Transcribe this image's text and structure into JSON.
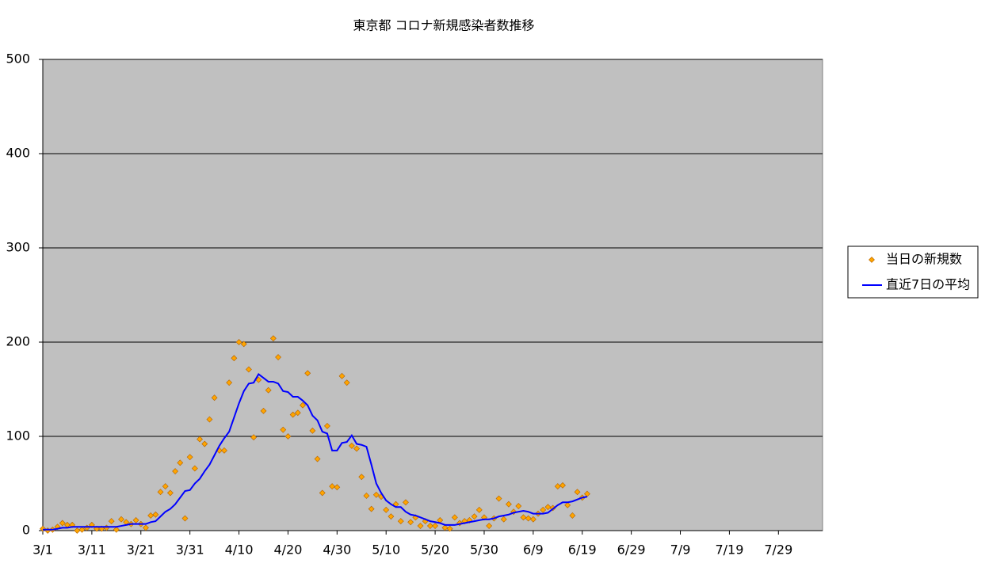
{
  "chart_data": {
    "type": "line",
    "title": "東京都 コロナ新規感染者数推移",
    "categories": [
      "3/1",
      null,
      null,
      null,
      null,
      null,
      null,
      null,
      null,
      null,
      "3/11",
      null,
      null,
      null,
      null,
      null,
      null,
      null,
      null,
      null,
      "3/21",
      null,
      null,
      null,
      null,
      null,
      null,
      null,
      null,
      null,
      "3/31",
      null,
      null,
      null,
      null,
      null,
      null,
      null,
      null,
      null,
      "4/10",
      null,
      null,
      null,
      null,
      null,
      null,
      null,
      null,
      null,
      "4/20",
      null,
      null,
      null,
      null,
      null,
      null,
      null,
      null,
      null,
      "4/30",
      null,
      null,
      null,
      null,
      null,
      null,
      null,
      null,
      null,
      "5/10",
      null,
      null,
      null,
      null,
      null,
      null,
      null,
      null,
      null,
      "5/20",
      null,
      null,
      null,
      null,
      null,
      null,
      null,
      null,
      null,
      "5/30",
      null,
      null,
      null,
      null,
      null,
      null,
      null,
      null,
      null,
      "6/9",
      null,
      null,
      null,
      null,
      null,
      null,
      null,
      null,
      null,
      "6/19",
      null,
      null,
      null,
      null,
      null,
      null,
      null,
      null,
      null,
      "6/29",
      null,
      null,
      null,
      null,
      null,
      null,
      null,
      null,
      null,
      "7/9",
      null,
      null,
      null,
      null,
      null,
      null,
      null,
      null,
      null,
      "7/19",
      null,
      null,
      null,
      null,
      null,
      null,
      null,
      null,
      null,
      "7/29",
      null,
      null,
      null,
      null,
      null,
      null,
      null,
      null
    ],
    "series": [
      {
        "name": "当日の新規数",
        "type": "scatter",
        "color": "#ffa500",
        "values": [
          2,
          0,
          1,
          4,
          8,
          6,
          6,
          0,
          1,
          3,
          6,
          2,
          2,
          3,
          10,
          1,
          12,
          9,
          7,
          11,
          7,
          3,
          16,
          17,
          41,
          47,
          40,
          63,
          72,
          13,
          78,
          66,
          97,
          92,
          118,
          141,
          85,
          85,
          157,
          183,
          200,
          198,
          171,
          99,
          160,
          127,
          149,
          204,
          184,
          107,
          100,
          123,
          125,
          133,
          167,
          106,
          76,
          40,
          111,
          47,
          46,
          164,
          157,
          90,
          87,
          57,
          37,
          23,
          38,
          36,
          22,
          15,
          28,
          10,
          30,
          9,
          14,
          5,
          10,
          5,
          5,
          11,
          3,
          2,
          14,
          8,
          10,
          11,
          15,
          22,
          14,
          5,
          13,
          34,
          12,
          28,
          20,
          26,
          14,
          13,
          12,
          18,
          22,
          25,
          24,
          47,
          48,
          27,
          16,
          41,
          35,
          39,
          null,
          null,
          null,
          null,
          null,
          null,
          null,
          null,
          null,
          null,
          null,
          null,
          null,
          null,
          null,
          null,
          null,
          null,
          null,
          null,
          null,
          null,
          null,
          null,
          null,
          null,
          null,
          null,
          null,
          null,
          null,
          null,
          null,
          null,
          null,
          null,
          null,
          null,
          null,
          null,
          null,
          null,
          null,
          null,
          null,
          null,
          null
        ]
      },
      {
        "name": "直近7日の平均",
        "type": "line",
        "color": "#0000ff",
        "values": [
          1,
          1,
          1,
          2,
          3,
          3,
          4,
          4,
          4,
          4,
          4,
          4,
          4,
          4,
          4,
          4,
          5,
          6,
          7,
          7,
          7,
          7,
          9,
          10,
          15,
          20,
          23,
          28,
          35,
          42,
          43,
          50,
          55,
          63,
          70,
          80,
          90,
          98,
          105,
          120,
          135,
          148,
          156,
          157,
          166,
          162,
          158,
          158,
          156,
          148,
          147,
          142,
          142,
          138,
          133,
          122,
          117,
          105,
          103,
          85,
          85,
          93,
          94,
          101,
          92,
          91,
          89,
          70,
          50,
          40,
          32,
          28,
          25,
          25,
          20,
          17,
          16,
          14,
          12,
          10,
          9,
          8,
          6,
          6,
          6,
          7,
          8,
          9,
          10,
          11,
          12,
          12,
          13,
          15,
          16,
          17,
          19,
          20,
          21,
          20,
          18,
          18,
          18,
          19,
          23,
          27,
          30,
          30,
          31,
          33,
          35,
          36,
          null,
          null,
          null,
          null,
          null,
          null,
          null,
          null,
          null,
          null,
          null,
          null,
          null,
          null,
          null,
          null,
          null,
          null,
          null,
          null,
          null,
          null,
          null,
          null,
          null,
          null,
          null,
          null,
          null,
          null,
          null,
          null,
          null,
          null,
          null,
          null,
          null,
          null,
          null,
          null,
          null,
          null,
          null,
          null,
          null,
          null,
          null
        ]
      }
    ],
    "ylim": [
      0,
      500
    ],
    "yticks": [
      0,
      100,
      200,
      300,
      400,
      500
    ],
    "grid": true,
    "legend": "right"
  }
}
